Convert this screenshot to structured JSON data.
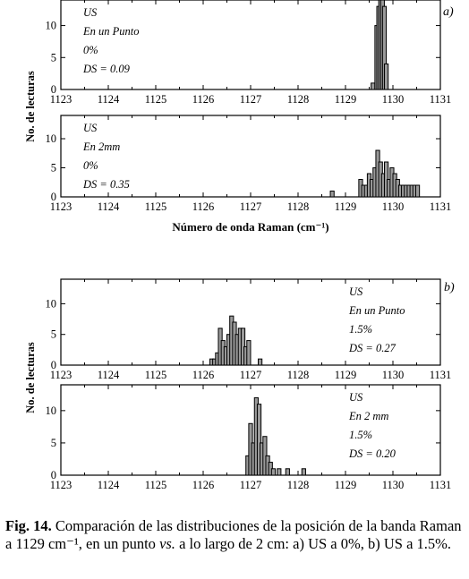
{
  "chart_data": [
    {
      "type": "bar",
      "panel_label": "a)",
      "ylabel": "No. de lecturas",
      "xlabel": "Número de onda Raman (cm⁻¹)",
      "xlim": [
        1123,
        1131
      ],
      "x_ticks": [
        "1123",
        "1124",
        "1125",
        "1126",
        "1127",
        "1128",
        "1129",
        "1130",
        "1131"
      ],
      "subplots": [
        {
          "legend": [
            "US",
            "En un Punto",
            "0%",
            "DS = 0.09"
          ],
          "legend_position": "top-left",
          "ylim": [
            0,
            14
          ],
          "y_ticks": [
            "0",
            "5",
            "10"
          ],
          "x": [
            1129.58,
            1129.62,
            1129.66,
            1129.7,
            1129.74,
            1129.78,
            1129.82,
            1129.86
          ],
          "values": [
            1,
            0,
            10,
            13,
            14,
            14,
            13,
            4
          ]
        },
        {
          "legend": [
            "US",
            "En 2mm",
            "0%",
            "DS = 0.35"
          ],
          "legend_position": "top-left",
          "ylim": [
            0,
            14
          ],
          "y_ticks": [
            "0",
            "5",
            "10"
          ],
          "x": [
            1128.72,
            1129.32,
            1129.38,
            1129.44,
            1129.5,
            1129.56,
            1129.62,
            1129.68,
            1129.74,
            1129.8,
            1129.86,
            1129.92,
            1129.98,
            1130.04,
            1130.1,
            1130.16,
            1130.22,
            1130.28,
            1130.34,
            1130.4,
            1130.46,
            1130.52
          ],
          "values": [
            1,
            3,
            2,
            2,
            4,
            3,
            5,
            8,
            6,
            4,
            6,
            3,
            5,
            4,
            3,
            2,
            2,
            2,
            2,
            2,
            2,
            2
          ]
        }
      ]
    },
    {
      "type": "bar",
      "panel_label": "b)",
      "ylabel": "No. de lecturas",
      "xlim": [
        1123,
        1131
      ],
      "x_ticks": [
        "1123",
        "1124",
        "1125",
        "1126",
        "1127",
        "1128",
        "1129",
        "1130",
        "1131"
      ],
      "subplots": [
        {
          "legend": [
            "US",
            "En un Punto",
            "1.5%",
            "DS = 0.27"
          ],
          "legend_position": "top-right",
          "ylim": [
            0,
            14
          ],
          "y_ticks": [
            "0",
            "5",
            "10"
          ],
          "x": [
            1126.18,
            1126.24,
            1126.3,
            1126.36,
            1126.42,
            1126.48,
            1126.54,
            1126.6,
            1126.66,
            1126.72,
            1126.78,
            1126.84,
            1126.9,
            1126.96,
            1127.2
          ],
          "values": [
            1,
            1,
            2,
            6,
            4,
            3,
            5,
            8,
            7,
            5,
            6,
            6,
            3,
            4,
            1
          ]
        },
        {
          "legend": [
            "US",
            "En 2 mm",
            "1.5%",
            "DS = 0.20"
          ],
          "legend_position": "top-right",
          "ylim": [
            0,
            14
          ],
          "y_ticks": [
            "0",
            "5",
            "10"
          ],
          "x": [
            1126.94,
            1127.0,
            1127.06,
            1127.12,
            1127.18,
            1127.24,
            1127.3,
            1127.36,
            1127.42,
            1127.48,
            1127.6,
            1127.78,
            1128.12
          ],
          "values": [
            3,
            8,
            5,
            12,
            11,
            5,
            6,
            3,
            2,
            1,
            1,
            1,
            1
          ]
        }
      ]
    }
  ],
  "caption": {
    "label": "Fig. 14.",
    "text_1": " Comparación de las distribuciones de la posición de la banda Raman a 1129 cm⁻¹, en un punto ",
    "vs": "vs.",
    "text_2": " a lo largo de 2 cm: a) US a 0%, b) US a 1.5%."
  }
}
